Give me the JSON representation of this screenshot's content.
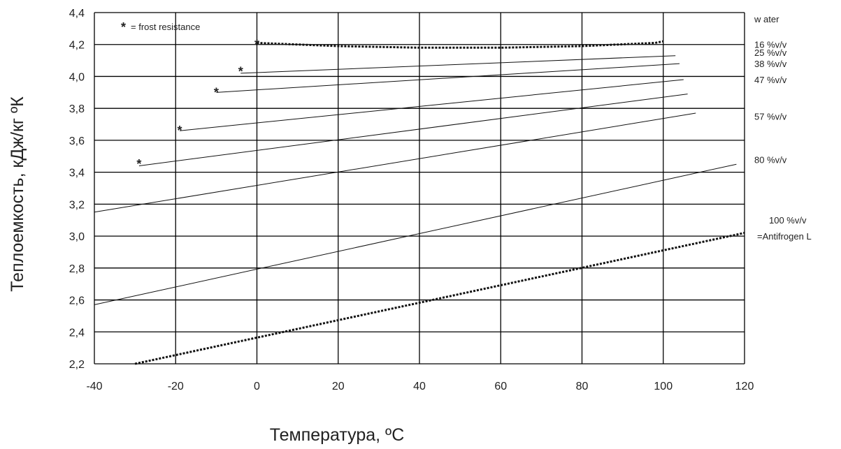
{
  "chart_data": {
    "type": "line",
    "title": "",
    "xlabel": "Температура, ºС",
    "ylabel": "Теплоемкость, кДж/кг ºК",
    "xlim": [
      -40,
      120
    ],
    "ylim": [
      2.2,
      4.4
    ],
    "x_ticks": [
      -40,
      -20,
      0,
      20,
      40,
      60,
      80,
      100,
      120
    ],
    "y_ticks": [
      2.2,
      2.4,
      2.6,
      2.8,
      3.0,
      3.2,
      3.4,
      3.6,
      3.8,
      4.0,
      4.2,
      4.4
    ],
    "x_tick_labels": [
      "-40",
      "-20",
      "0",
      "20",
      "40",
      "60",
      "80",
      "100",
      "120"
    ],
    "y_tick_labels": [
      "2,2",
      "2,4",
      "2,6",
      "2,8",
      "3,0",
      "3,2",
      "3,4",
      "3,6",
      "3,8",
      "4,0",
      "4,2",
      "4,4"
    ],
    "grid": true,
    "legend": {
      "marker": "*",
      "text": "= frost resistance",
      "position": "top-left"
    },
    "series": [
      {
        "name": "water",
        "style": "dotted",
        "x": [
          0,
          20,
          40,
          60,
          80,
          98,
          100
        ],
        "y": [
          4.21,
          4.19,
          4.18,
          4.18,
          4.19,
          4.21,
          4.22
        ]
      },
      {
        "name": "16 %v/v",
        "style": "solid",
        "x": [
          -4,
          103
        ],
        "y": [
          4.02,
          4.13
        ]
      },
      {
        "name": "25 %v/v",
        "style": "solid",
        "x": [
          -10,
          104
        ],
        "y": [
          3.9,
          4.08
        ]
      },
      {
        "name": "38 %v/v",
        "style": "solid",
        "x": [
          -19,
          105
        ],
        "y": [
          3.66,
          3.98
        ]
      },
      {
        "name": "47 %v/v",
        "style": "solid",
        "x": [
          -29,
          106
        ],
        "y": [
          3.44,
          3.89
        ]
      },
      {
        "name": "57 %v/v",
        "style": "solid",
        "x": [
          -40,
          108
        ],
        "y": [
          3.15,
          3.77
        ]
      },
      {
        "name": "80 %v/v",
        "style": "solid",
        "x": [
          -40,
          118
        ],
        "y": [
          2.57,
          3.45
        ]
      },
      {
        "name": "100 %v/v =Antifrogen L",
        "style": "dotted",
        "x": [
          -30,
          120
        ],
        "y": [
          2.2,
          3.02
        ]
      }
    ],
    "frost_resistance_points": [
      {
        "x": 0,
        "y": 4.2
      },
      {
        "x": -4,
        "y": 4.03
      },
      {
        "x": -10,
        "y": 3.9
      },
      {
        "x": -19,
        "y": 3.66
      },
      {
        "x": -29,
        "y": 3.45
      }
    ],
    "series_labels": [
      {
        "text": "w ater",
        "y": 4.36
      },
      {
        "text": "16 %v/v",
        "y": 4.2
      },
      {
        "text": "25 %v/v",
        "y": 4.15
      },
      {
        "text": "38 %v/v",
        "y": 4.08
      },
      {
        "text": "47 %v/v",
        "y": 3.98
      },
      {
        "text": "57 %v/v",
        "y": 3.75
      },
      {
        "text": "80 %v/v",
        "y": 3.48
      },
      {
        "text": "100 %v/v",
        "y": 3.1
      },
      {
        "text": "=Antifrogen L",
        "y": 3.0
      }
    ]
  }
}
